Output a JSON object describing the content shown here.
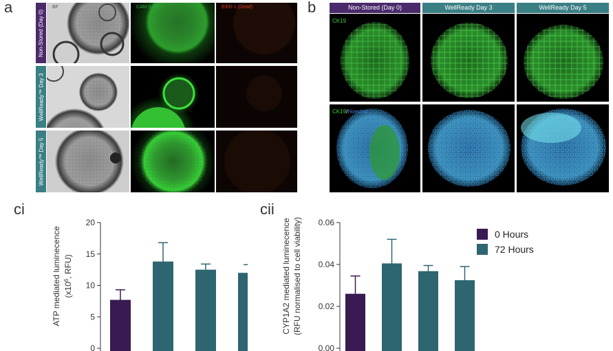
{
  "panel_a": {
    "letter": "a",
    "row_labels": [
      "Non-Stored (Day 0)",
      "WellReady™ Day 3",
      "WellReady™ Day 5"
    ],
    "row_label_colors": [
      "#4a2a6b",
      "#3a7f84",
      "#3a7f84"
    ],
    "col_labels": [
      "BF",
      "CAM (Live)",
      "EthD-1 (Dead)"
    ],
    "col_label_colors": [
      "#555555",
      "#2fa84f",
      "#d23a2a"
    ]
  },
  "panel_b": {
    "letter": "b",
    "col_headers": [
      "Non-Stored (Day 0)",
      "WellReady  Day 3",
      "WellReady  Day 5"
    ],
    "col_header_colors": [
      "#4a2a6b",
      "#3a7f84",
      "#3a7f84"
    ],
    "row1_stain": "CK19",
    "row2_stain_a": "CK19",
    "row2_stain_sep": "/",
    "row2_stain_b": "Hoechst"
  },
  "legend": {
    "items": [
      {
        "label": "0 Hours",
        "color": "#3a1a52"
      },
      {
        "label": "72 Hours",
        "color": "#2d6670"
      }
    ]
  },
  "chart_data": [
    {
      "panel": "ci",
      "type": "bar",
      "ylabel_line1": "ATP mediated luminecence",
      "ylabel_line2_pre": "(x10",
      "ylabel_line2_sup": "6",
      "ylabel_line2_post": ", RFU)",
      "ylim": [
        0,
        20
      ],
      "yticks": [
        "0",
        "5",
        "10",
        "15",
        "20"
      ],
      "grid": false,
      "series": [
        {
          "name": "0 Hours",
          "color": "#3a1a52",
          "values": [
            7.7
          ],
          "errors": [
            1.6
          ]
        },
        {
          "name": "72 Hours",
          "color": "#2d6670",
          "values": [
            13.8,
            12.5,
            12.0
          ],
          "errors": [
            3.0,
            0.9,
            1.3
          ]
        }
      ]
    },
    {
      "panel": "cii",
      "type": "bar",
      "ylabel_line1": "CYP1A2 mediated luminecence",
      "ylabel_line2": "(RFU normalised to cell viability)",
      "ylim": [
        0,
        0.06
      ],
      "yticks": [
        "0.00",
        "0.02",
        "0.04",
        "0.06"
      ],
      "grid": false,
      "series": [
        {
          "name": "0 Hours",
          "color": "#3a1a52",
          "values": [
            0.026
          ],
          "errors": [
            0.0085
          ]
        },
        {
          "name": "72 Hours",
          "color": "#2d6670",
          "values": [
            0.0405,
            0.0368,
            0.0325
          ],
          "errors": [
            0.0115,
            0.0027,
            0.0065
          ]
        }
      ]
    }
  ]
}
